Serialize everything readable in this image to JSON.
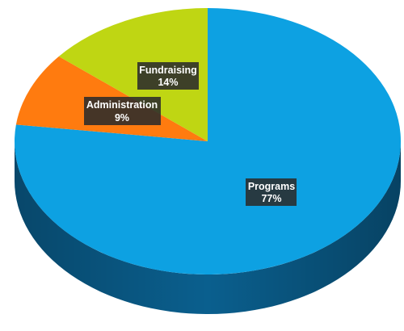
{
  "chart_data": {
    "type": "pie",
    "style": "3d",
    "title": "",
    "legend": "none",
    "slices": [
      {
        "name": "Programs",
        "value": 77,
        "label": "77%",
        "color": "#0da1e2",
        "side_color": "#0a5f8e"
      },
      {
        "name": "Administration",
        "value": 9,
        "label": "9%",
        "color": "#ff7b0f",
        "side_color": "#a84c06"
      },
      {
        "name": "Fundraising",
        "value": 14,
        "label": "14%",
        "color": "#bfd613",
        "side_color": "#7a8a0a"
      }
    ]
  }
}
